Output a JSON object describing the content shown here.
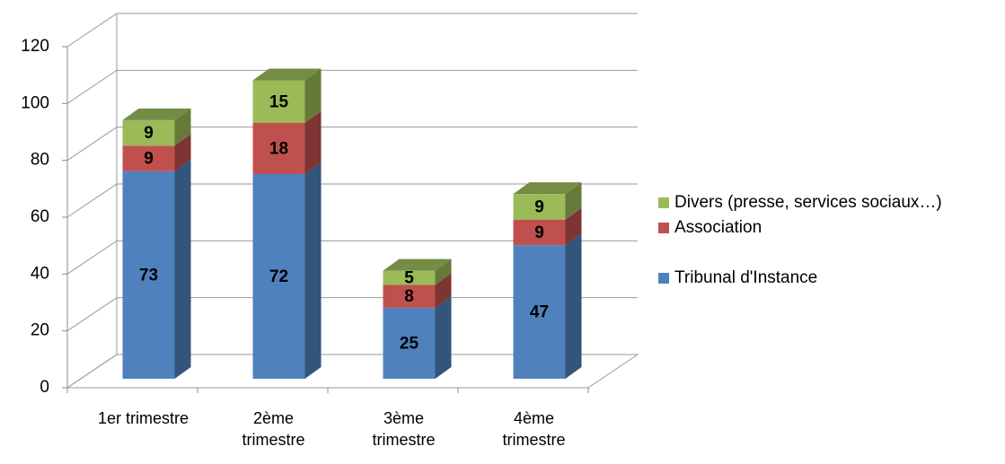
{
  "chart_data": {
    "type": "bar3d_stacked",
    "categories": [
      "1er trimestre",
      "2ème trimestre",
      "3ème trimestre",
      "4ème trimestre"
    ],
    "series": [
      {
        "name": "Tribunal d'Instance",
        "color": "#4f81bd",
        "values": [
          73,
          72,
          25,
          47
        ]
      },
      {
        "name": "Association",
        "color": "#c0504d",
        "values": [
          9,
          18,
          8,
          9
        ]
      },
      {
        "name": "Divers (presse, services sociaux…)",
        "color": "#9bbb59",
        "values": [
          9,
          15,
          5,
          9
        ]
      }
    ],
    "ylim": [
      0,
      120
    ],
    "yticks": [
      0,
      20,
      40,
      60,
      80,
      100,
      120
    ],
    "grid": true,
    "legend": "right"
  }
}
